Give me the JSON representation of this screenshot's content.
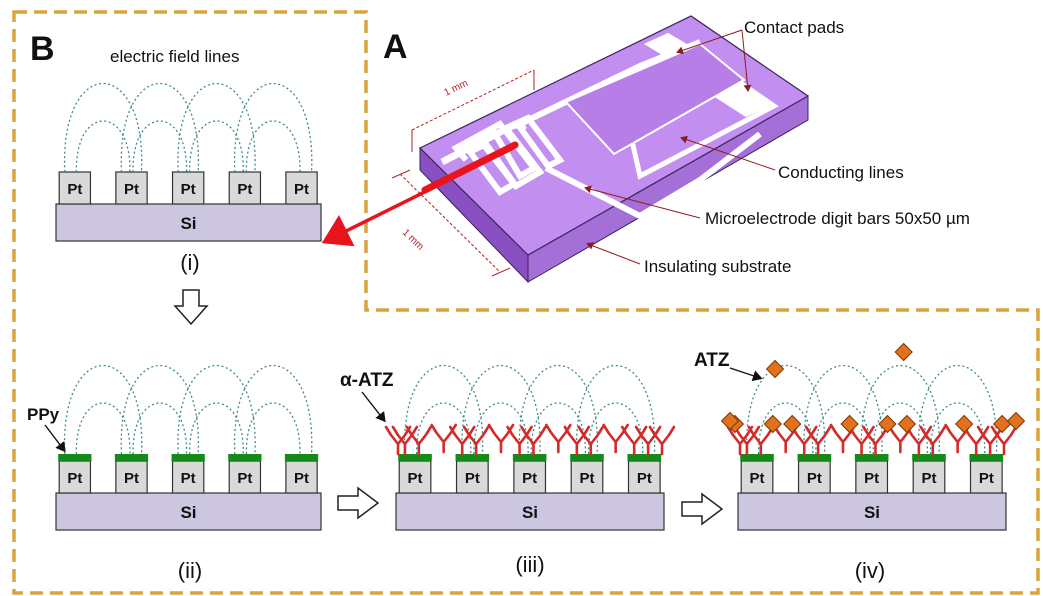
{
  "panel_a": {
    "letter": "A",
    "dims": {
      "top": "1 mm",
      "left": "1 mm"
    },
    "callouts": {
      "contact_pads": "Contact pads",
      "conducting_lines": "Conducting lines",
      "digit_bars": "Microelectrode digit bars 50x50 µm",
      "insulating_substrate": "Insulating substrate"
    }
  },
  "panel_b": {
    "letter": "B",
    "field_lines_label": "electric field lines",
    "electrode_label": "Pt",
    "substrate_label": "Si",
    "steps": [
      {
        "numeral": "(i)"
      },
      {
        "numeral": "(ii)",
        "layer_label": "PPy"
      },
      {
        "numeral": "(iii)",
        "layer_label": "α-ATZ"
      },
      {
        "numeral": "(iv)",
        "layer_label": "ATZ"
      }
    ]
  },
  "colors": {
    "frame": "#d9a440",
    "chip_top": "#c28ff0",
    "substrate": "#cdc6e0",
    "electrode": "#d9d9d9",
    "polymer": "#15891a",
    "antibody": "#d42a2a",
    "antigen": "#e2701c",
    "field_lines": "#3f8a8a",
    "pointer": "#e8141c"
  }
}
